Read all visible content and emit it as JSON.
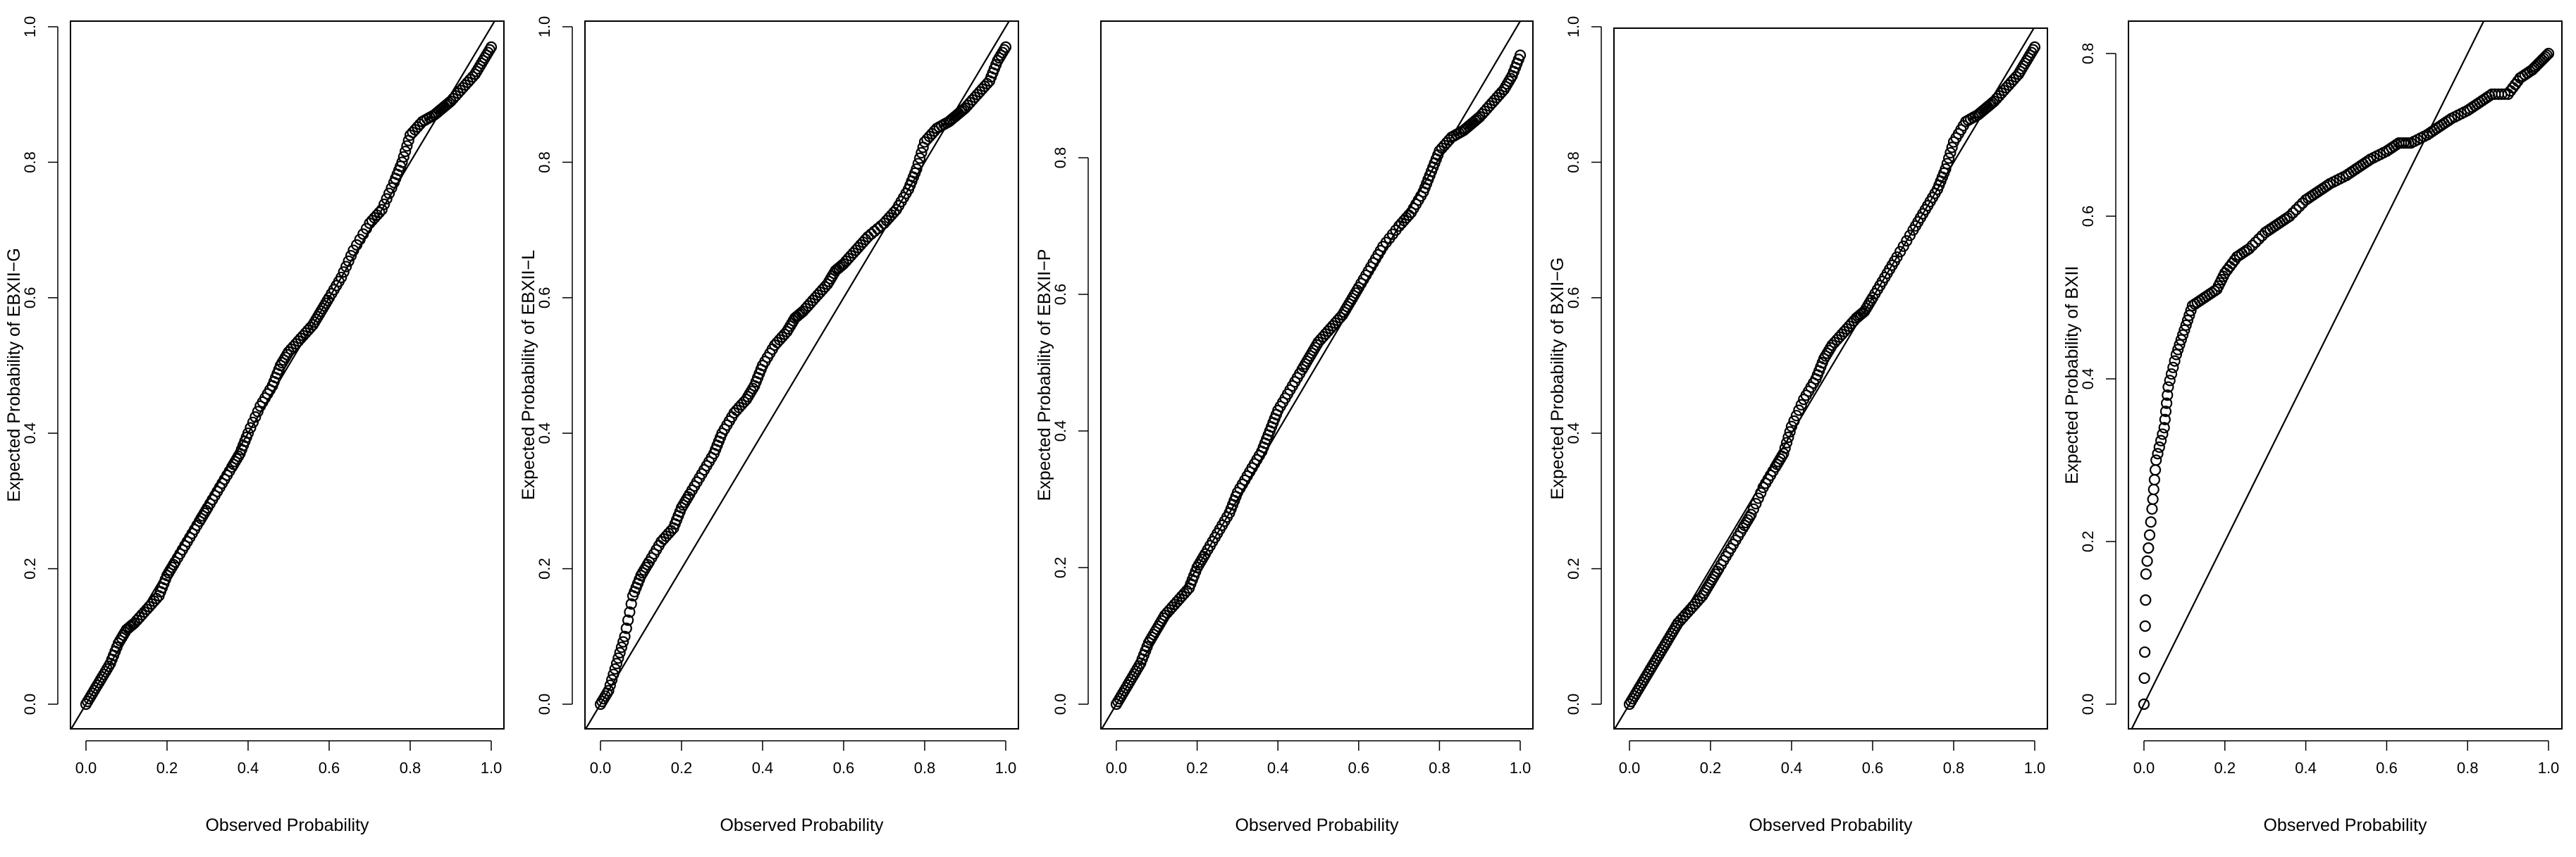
{
  "chart_data": [
    {
      "type": "scatter",
      "xlabel": "Observed Probability",
      "ylabel": "Expected Probability of EBXII−G",
      "xlim": [
        0,
        1
      ],
      "ylim": [
        0,
        1
      ],
      "xticks": [
        "0.0",
        "0.2",
        "0.4",
        "0.6",
        "0.8",
        "1.0"
      ],
      "yticks": [
        "0.0",
        "0.2",
        "0.4",
        "0.6",
        "0.8",
        "1.0"
      ],
      "reference_line": "y = x",
      "grid": false,
      "points": {
        "x": [
          0.0,
          0.02,
          0.04,
          0.06,
          0.08,
          0.1,
          0.12,
          0.15,
          0.18,
          0.2,
          0.22,
          0.25,
          0.28,
          0.3,
          0.33,
          0.36,
          0.38,
          0.4,
          0.43,
          0.46,
          0.48,
          0.5,
          0.53,
          0.56,
          0.58,
          0.6,
          0.63,
          0.66,
          0.7,
          0.73,
          0.76,
          0.78,
          0.8,
          0.83,
          0.86,
          0.88,
          0.9,
          0.93,
          0.96,
          0.98,
          1.0
        ],
        "y": [
          0.0,
          0.02,
          0.04,
          0.06,
          0.09,
          0.11,
          0.12,
          0.14,
          0.16,
          0.19,
          0.21,
          0.24,
          0.27,
          0.29,
          0.32,
          0.35,
          0.37,
          0.4,
          0.44,
          0.47,
          0.5,
          0.52,
          0.54,
          0.56,
          0.58,
          0.6,
          0.63,
          0.67,
          0.71,
          0.73,
          0.77,
          0.8,
          0.84,
          0.86,
          0.87,
          0.88,
          0.89,
          0.91,
          0.93,
          0.95,
          0.97
        ]
      }
    },
    {
      "type": "scatter",
      "xlabel": "Observed Probability",
      "ylabel": "Expected Probability of EBXII−L",
      "xlim": [
        0,
        1
      ],
      "ylim": [
        0,
        1
      ],
      "xticks": [
        "0.0",
        "0.2",
        "0.4",
        "0.6",
        "0.8",
        "1.0"
      ],
      "yticks": [
        "0.0",
        "0.2",
        "0.4",
        "0.6",
        "0.8",
        "1.0"
      ],
      "reference_line": "y = x",
      "grid": false,
      "points": {
        "x": [
          0.0,
          0.02,
          0.04,
          0.06,
          0.08,
          0.1,
          0.12,
          0.15,
          0.18,
          0.2,
          0.22,
          0.25,
          0.28,
          0.3,
          0.33,
          0.36,
          0.38,
          0.4,
          0.43,
          0.46,
          0.48,
          0.5,
          0.53,
          0.56,
          0.58,
          0.6,
          0.63,
          0.66,
          0.7,
          0.73,
          0.76,
          0.78,
          0.8,
          0.83,
          0.86,
          0.88,
          0.9,
          0.93,
          0.96,
          0.98,
          1.0
        ],
        "y": [
          0.0,
          0.02,
          0.06,
          0.1,
          0.16,
          0.19,
          0.21,
          0.24,
          0.26,
          0.29,
          0.31,
          0.34,
          0.37,
          0.4,
          0.43,
          0.45,
          0.47,
          0.5,
          0.53,
          0.55,
          0.57,
          0.58,
          0.6,
          0.62,
          0.64,
          0.65,
          0.67,
          0.69,
          0.71,
          0.73,
          0.76,
          0.79,
          0.83,
          0.85,
          0.86,
          0.87,
          0.88,
          0.9,
          0.92,
          0.95,
          0.97
        ]
      }
    },
    {
      "type": "scatter",
      "xlabel": "Observed Probability",
      "ylabel": "Expected Probability of EBXII−P",
      "xlim": [
        0,
        1
      ],
      "ylim": [
        0,
        1
      ],
      "xticks": [
        "0.0",
        "0.2",
        "0.4",
        "0.6",
        "0.8",
        "1.0"
      ],
      "yticks": [
        "0.0",
        "0.2",
        "0.4",
        "0.6",
        "0.8"
      ],
      "reference_line": "y = x",
      "grid": false,
      "points": {
        "x": [
          0.0,
          0.02,
          0.04,
          0.06,
          0.08,
          0.1,
          0.12,
          0.15,
          0.18,
          0.2,
          0.22,
          0.25,
          0.28,
          0.3,
          0.33,
          0.36,
          0.38,
          0.4,
          0.43,
          0.46,
          0.48,
          0.5,
          0.53,
          0.56,
          0.58,
          0.6,
          0.63,
          0.66,
          0.7,
          0.73,
          0.76,
          0.78,
          0.8,
          0.83,
          0.86,
          0.88,
          0.9,
          0.93,
          0.96,
          0.98,
          1.0
        ],
        "y": [
          0.0,
          0.02,
          0.04,
          0.06,
          0.09,
          0.11,
          0.13,
          0.15,
          0.17,
          0.2,
          0.22,
          0.25,
          0.28,
          0.31,
          0.34,
          0.37,
          0.4,
          0.43,
          0.46,
          0.49,
          0.51,
          0.53,
          0.55,
          0.57,
          0.59,
          0.61,
          0.64,
          0.67,
          0.7,
          0.72,
          0.75,
          0.78,
          0.81,
          0.83,
          0.84,
          0.85,
          0.86,
          0.88,
          0.9,
          0.92,
          0.95
        ]
      }
    },
    {
      "type": "scatter",
      "xlabel": "Observed Probability",
      "ylabel": "Expected Probability of BXII−G",
      "xlim": [
        0,
        1
      ],
      "ylim": [
        0,
        1
      ],
      "xticks": [
        "0.0",
        "0.2",
        "0.4",
        "0.6",
        "0.8",
        "1.0"
      ],
      "yticks": [
        "0.0",
        "0.2",
        "0.4",
        "0.6",
        "0.8",
        "1.0"
      ],
      "reference_line": "y = x",
      "grid": false,
      "points": {
        "x": [
          0.0,
          0.02,
          0.04,
          0.06,
          0.08,
          0.1,
          0.12,
          0.15,
          0.18,
          0.2,
          0.22,
          0.25,
          0.28,
          0.3,
          0.33,
          0.36,
          0.38,
          0.4,
          0.43,
          0.46,
          0.48,
          0.5,
          0.53,
          0.56,
          0.58,
          0.6,
          0.63,
          0.66,
          0.7,
          0.73,
          0.76,
          0.78,
          0.8,
          0.83,
          0.86,
          0.88,
          0.9,
          0.93,
          0.96,
          0.98,
          1.0
        ],
        "y": [
          0.0,
          0.02,
          0.04,
          0.06,
          0.08,
          0.1,
          0.12,
          0.14,
          0.16,
          0.18,
          0.2,
          0.23,
          0.26,
          0.28,
          0.32,
          0.35,
          0.37,
          0.41,
          0.45,
          0.48,
          0.51,
          0.53,
          0.55,
          0.57,
          0.58,
          0.6,
          0.63,
          0.66,
          0.7,
          0.73,
          0.76,
          0.79,
          0.83,
          0.86,
          0.87,
          0.88,
          0.89,
          0.91,
          0.93,
          0.95,
          0.97
        ]
      }
    },
    {
      "type": "scatter",
      "xlabel": "Observed Probability",
      "ylabel": "Expected Probability of BXII",
      "xlim": [
        0,
        1
      ],
      "ylim": [
        0,
        0.8
      ],
      "xticks": [
        "0.0",
        "0.2",
        "0.4",
        "0.6",
        "0.8",
        "1.0"
      ],
      "yticks": [
        "0.0",
        "0.2",
        "0.4",
        "0.6",
        "0.8"
      ],
      "reference_line": "y = x",
      "grid": false,
      "points": {
        "x": [
          0.0,
          0.005,
          0.02,
          0.03,
          0.05,
          0.06,
          0.08,
          0.1,
          0.12,
          0.15,
          0.18,
          0.2,
          0.23,
          0.26,
          0.3,
          0.33,
          0.36,
          0.4,
          0.43,
          0.46,
          0.5,
          0.53,
          0.56,
          0.6,
          0.63,
          0.66,
          0.7,
          0.73,
          0.76,
          0.8,
          0.83,
          0.86,
          0.9,
          0.93,
          0.96,
          0.98,
          1.0
        ],
        "y": [
          0.0,
          0.16,
          0.24,
          0.3,
          0.34,
          0.39,
          0.43,
          0.46,
          0.49,
          0.5,
          0.51,
          0.53,
          0.55,
          0.56,
          0.58,
          0.59,
          0.6,
          0.62,
          0.63,
          0.64,
          0.65,
          0.66,
          0.67,
          0.68,
          0.69,
          0.69,
          0.7,
          0.71,
          0.72,
          0.73,
          0.74,
          0.75,
          0.75,
          0.77,
          0.78,
          0.79,
          0.8
        ]
      }
    }
  ]
}
